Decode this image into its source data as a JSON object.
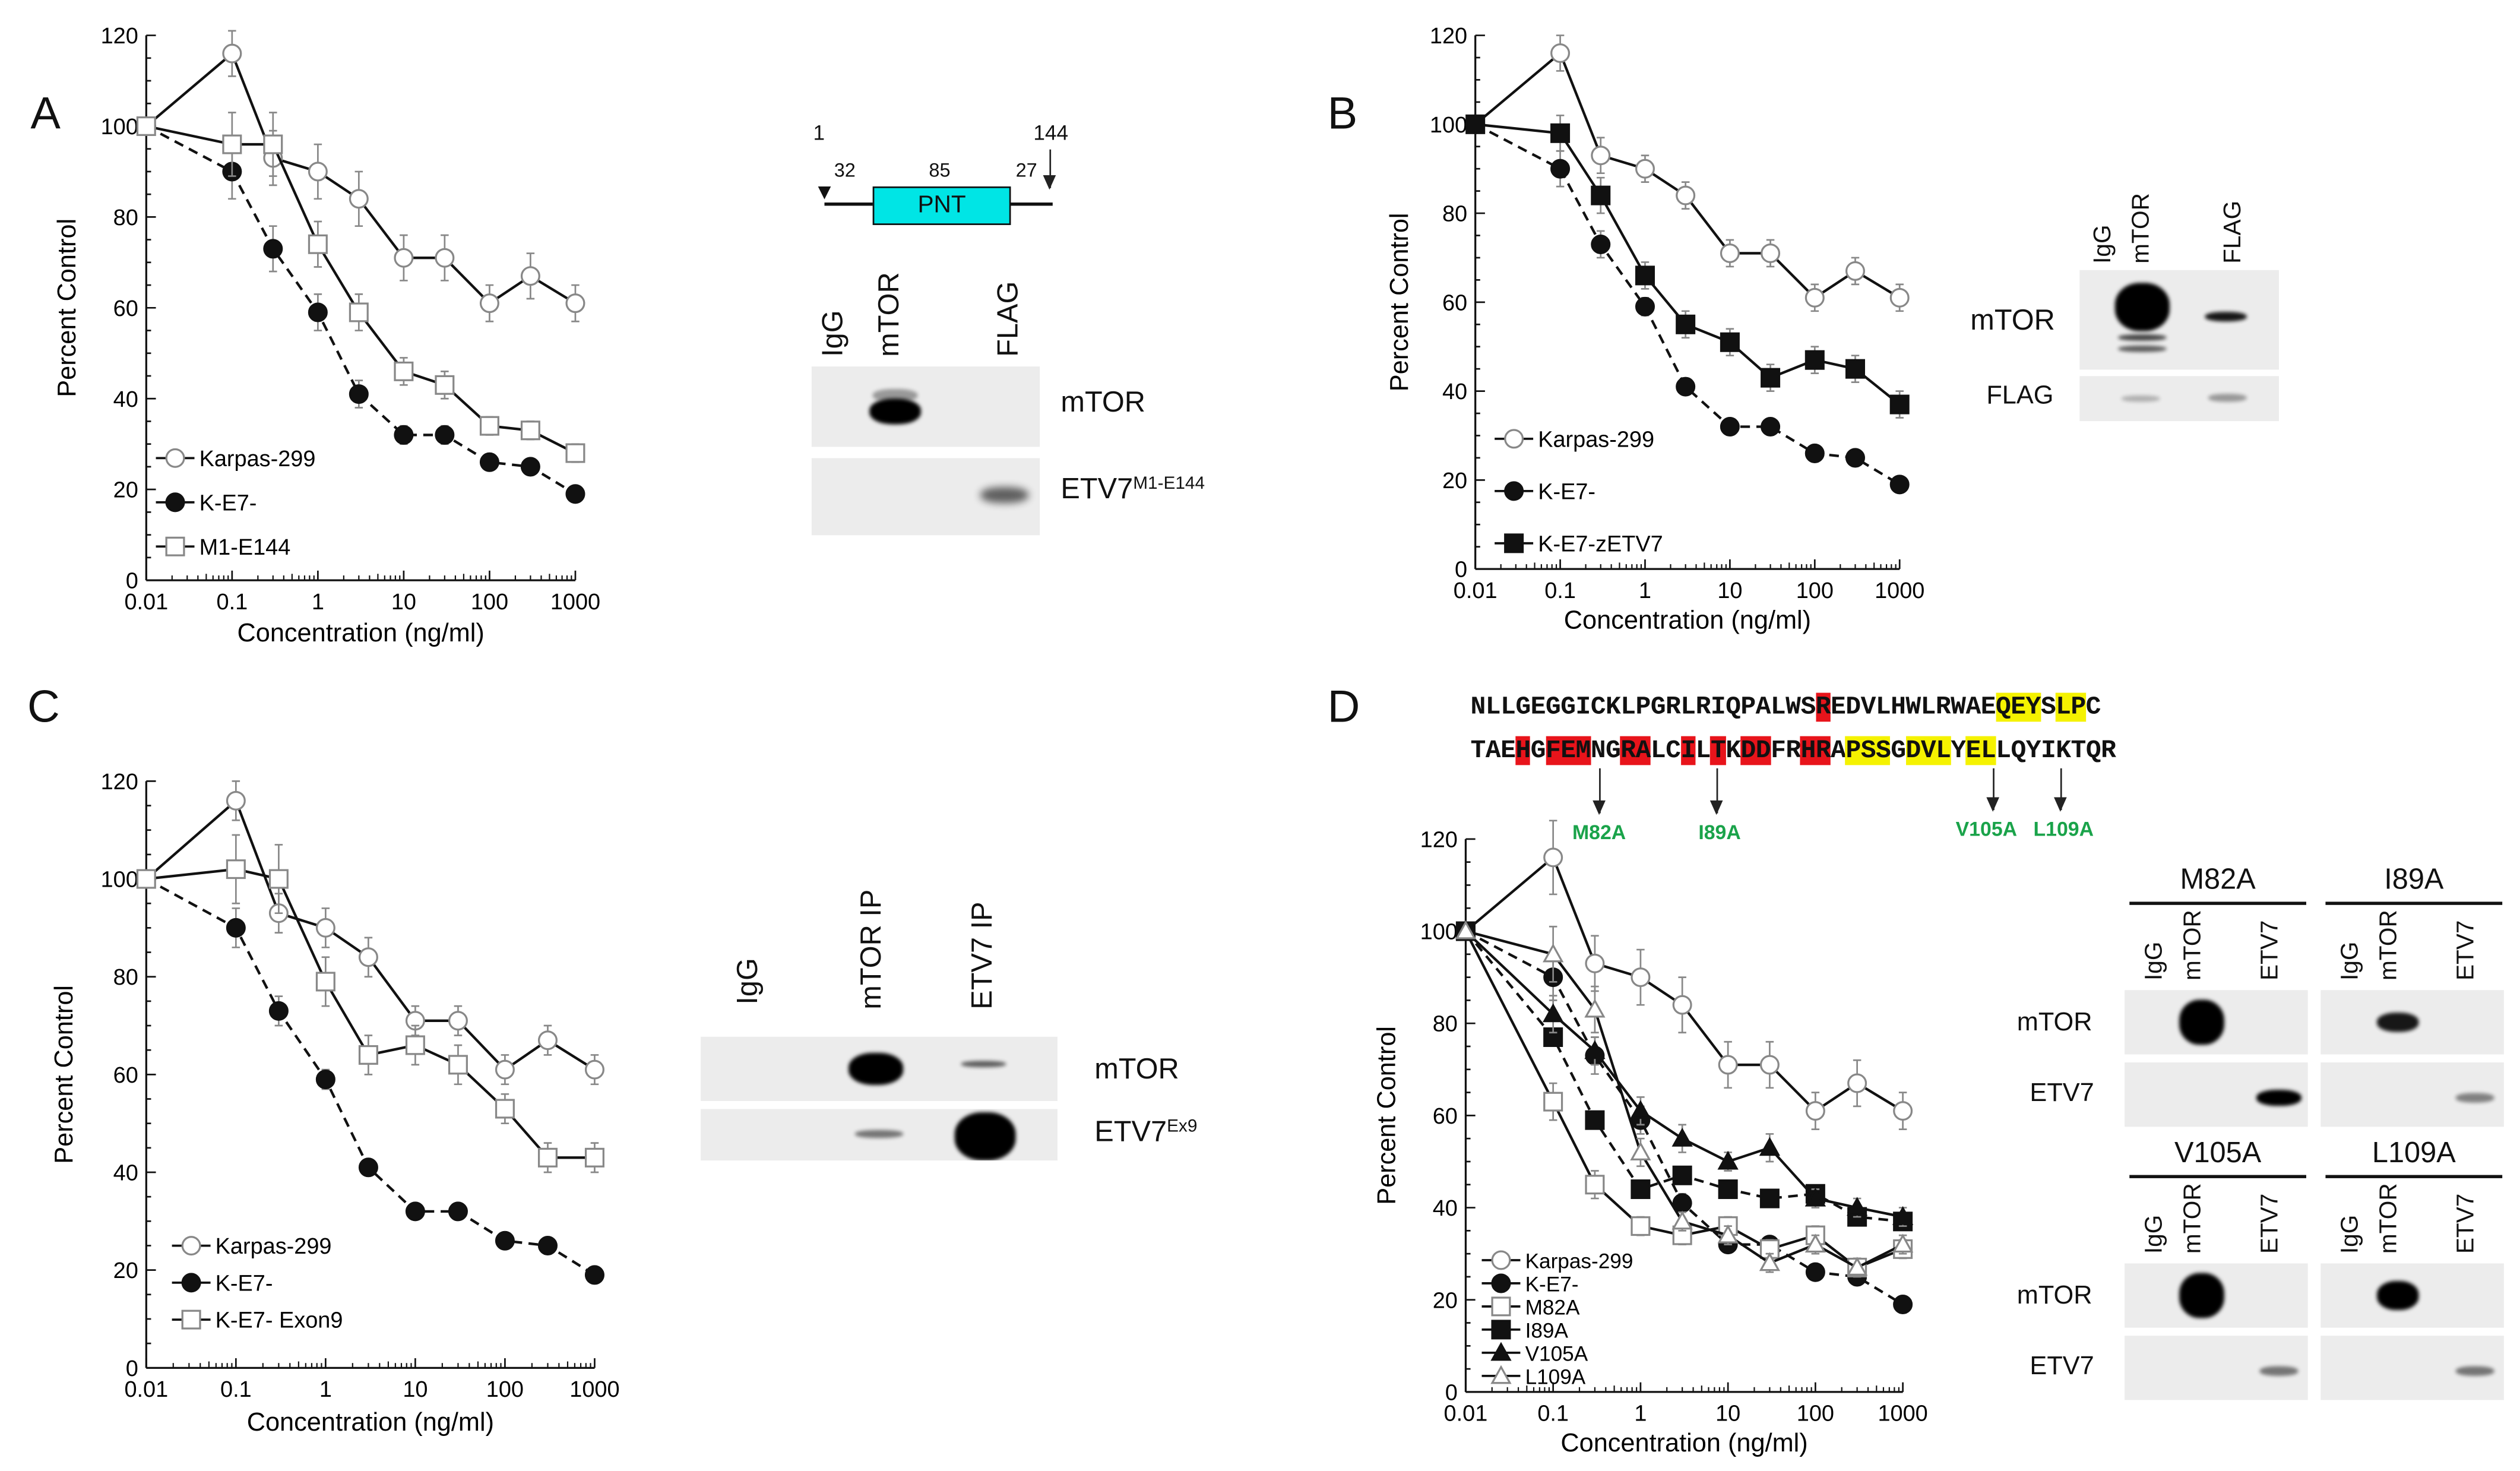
{
  "chart_data": [
    {
      "type": "line",
      "panel": "A",
      "xlabel": "Concentration (ng/ml)",
      "ylabel": "Percent  Control",
      "xscale": "log",
      "xlim": [
        0.01,
        1000
      ],
      "ylim": [
        0,
        120
      ],
      "xticks": [
        "0.01",
        "0.1",
        "1",
        "10",
        "100",
        "1000"
      ],
      "yticks": [
        "0",
        "20",
        "40",
        "60",
        "80",
        "100",
        "120"
      ],
      "legend_position": "bottom-left",
      "x": [
        0.01,
        0.1,
        0.3,
        1,
        3,
        10,
        30,
        100,
        300,
        1000
      ],
      "series": [
        {
          "name": "Karpas-299",
          "marker": "circle-open",
          "dash": false,
          "values": [
            100,
            116,
            93,
            90,
            84,
            71,
            71,
            61,
            67,
            61
          ],
          "err": [
            0,
            5,
            6,
            6,
            6,
            5,
            5,
            4,
            5,
            4
          ]
        },
        {
          "name": "K-E7-",
          "marker": "circle-filled",
          "dash": true,
          "values": [
            100,
            90,
            73,
            59,
            41,
            32,
            32,
            26,
            25,
            19
          ],
          "err": [
            0,
            6,
            5,
            4,
            3,
            2,
            2,
            1,
            1,
            1
          ]
        },
        {
          "name": "M1-E144",
          "marker": "square-open",
          "dash": false,
          "values": [
            100,
            96,
            96,
            74,
            59,
            46,
            43,
            34,
            33,
            28
          ],
          "err": [
            0,
            7,
            7,
            5,
            4,
            3,
            3,
            2,
            2,
            2
          ]
        }
      ]
    },
    {
      "type": "line",
      "panel": "B",
      "xlabel": "Concentration (ng/ml)",
      "ylabel": "Percent  Control",
      "xscale": "log",
      "xlim": [
        0.01,
        1000
      ],
      "ylim": [
        0,
        120
      ],
      "xticks": [
        "0.01",
        "0.1",
        "1",
        "10",
        "100",
        "1000"
      ],
      "yticks": [
        "0",
        "20",
        "40",
        "60",
        "80",
        "100",
        "120"
      ],
      "legend_position": "bottom-left",
      "x": [
        0.01,
        0.1,
        0.3,
        1,
        3,
        10,
        30,
        100,
        300,
        1000
      ],
      "series": [
        {
          "name": "Karpas-299",
          "marker": "circle-open",
          "dash": false,
          "values": [
            100,
            116,
            93,
            90,
            84,
            71,
            71,
            61,
            67,
            61
          ],
          "err": [
            0,
            4,
            4,
            3,
            3,
            3,
            3,
            3,
            3,
            3
          ]
        },
        {
          "name": "K-E7-",
          "marker": "circle-filled",
          "dash": true,
          "values": [
            100,
            90,
            73,
            59,
            41,
            32,
            32,
            26,
            25,
            19
          ],
          "err": [
            0,
            4,
            3,
            2,
            1,
            1,
            1,
            1,
            1,
            1
          ]
        },
        {
          "name": "K-E7-zETV7",
          "marker": "square-filled",
          "dash": false,
          "values": [
            100,
            98,
            84,
            66,
            55,
            51,
            43,
            47,
            45,
            37
          ],
          "err": [
            0,
            4,
            4,
            3,
            3,
            3,
            3,
            3,
            3,
            3
          ]
        }
      ]
    },
    {
      "type": "line",
      "panel": "C",
      "xlabel": "Concentration (ng/ml)",
      "ylabel": "Percent  Control",
      "xscale": "log",
      "xlim": [
        0.01,
        1000
      ],
      "ylim": [
        0,
        120
      ],
      "xticks": [
        "0.01",
        "0.1",
        "1",
        "10",
        "100",
        "1000"
      ],
      "yticks": [
        "0",
        "20",
        "40",
        "60",
        "80",
        "100",
        "120"
      ],
      "legend_position": "bottom-left",
      "x": [
        0.01,
        0.1,
        0.3,
        1,
        3,
        10,
        30,
        100,
        300,
        1000
      ],
      "series": [
        {
          "name": "Karpas-299",
          "marker": "circle-open",
          "dash": false,
          "values": [
            100,
            116,
            93,
            90,
            84,
            71,
            71,
            61,
            67,
            61
          ],
          "err": [
            0,
            4,
            4,
            4,
            4,
            3,
            3,
            3,
            3,
            3
          ]
        },
        {
          "name": "K-E7-",
          "marker": "circle-filled",
          "dash": true,
          "values": [
            100,
            90,
            73,
            59,
            41,
            32,
            32,
            26,
            25,
            19
          ],
          "err": [
            0,
            4,
            3,
            2,
            1,
            1,
            1,
            1,
            1,
            1
          ]
        },
        {
          "name": "K-E7- Exon9",
          "marker": "square-open",
          "dash": false,
          "values": [
            100,
            102,
            100,
            79,
            64,
            66,
            62,
            53,
            43,
            43
          ],
          "err": [
            0,
            7,
            7,
            5,
            4,
            4,
            4,
            3,
            3,
            3
          ]
        }
      ]
    },
    {
      "type": "line",
      "panel": "D",
      "xlabel": "Concentration (ng/ml)",
      "ylabel": "Percent  Control",
      "xscale": "log",
      "xlim": [
        0.01,
        1000
      ],
      "ylim": [
        0,
        120
      ],
      "xticks": [
        "0.01",
        "0.1",
        "1",
        "10",
        "100",
        "1000"
      ],
      "yticks": [
        "0",
        "20",
        "40",
        "60",
        "80",
        "100",
        "120"
      ],
      "legend_position": "bottom-left",
      "x": [
        0.01,
        0.1,
        0.3,
        1,
        3,
        10,
        30,
        100,
        300,
        1000
      ],
      "series": [
        {
          "name": "Karpas-299",
          "marker": "circle-open",
          "dash": false,
          "values": [
            100,
            116,
            93,
            90,
            84,
            71,
            71,
            61,
            67,
            61
          ],
          "err": [
            0,
            8,
            6,
            6,
            6,
            5,
            5,
            4,
            5,
            4
          ]
        },
        {
          "name": "K-E7-",
          "marker": "circle-filled",
          "dash": true,
          "values": [
            100,
            90,
            73,
            59,
            41,
            32,
            32,
            26,
            25,
            19
          ],
          "err": [
            0,
            5,
            4,
            3,
            2,
            1,
            1,
            1,
            1,
            1
          ]
        },
        {
          "name": "M82A",
          "marker": "square-open",
          "dash": false,
          "values": [
            100,
            63,
            45,
            36,
            34,
            36,
            31,
            34,
            27,
            31
          ],
          "err": [
            0,
            4,
            3,
            2,
            2,
            2,
            2,
            2,
            2,
            2
          ]
        },
        {
          "name": "I89A",
          "marker": "square-filled",
          "dash": true,
          "values": [
            100,
            77,
            59,
            44,
            47,
            44,
            42,
            43,
            38,
            37
          ],
          "err": [
            0,
            0,
            0,
            0,
            0,
            0,
            0,
            0,
            0,
            0
          ]
        },
        {
          "name": "V105A",
          "marker": "triangle-filled",
          "dash": false,
          "values": [
            100,
            82,
            74,
            61,
            55,
            50,
            53,
            42,
            40,
            38
          ],
          "err": [
            0,
            4,
            3,
            3,
            3,
            2,
            3,
            2,
            2,
            2
          ]
        },
        {
          "name": "L109A",
          "marker": "triangle-open",
          "dash": false,
          "values": [
            100,
            95,
            83,
            52,
            37,
            34,
            28,
            32,
            27,
            32
          ],
          "err": [
            0,
            6,
            5,
            3,
            2,
            2,
            2,
            2,
            2,
            2
          ]
        }
      ]
    }
  ],
  "panel_a_blot": {
    "domain": {
      "start": "1",
      "end": "144",
      "n_term": "32",
      "pnt_len": "85",
      "c_term": "27",
      "box_label": "PNT",
      "box_color": "#00e5e5"
    },
    "lanes": [
      "IgG",
      "mTOR",
      "FLAG"
    ],
    "rows": [
      "mTOR",
      "ETV7",
      "M1-E144"
    ]
  },
  "panel_b_blot": {
    "lanes": [
      "IgG",
      "mTOR",
      "FLAG"
    ],
    "rows": [
      "mTOR",
      "FLAG"
    ]
  },
  "panel_c_blot": {
    "lanes": [
      "IgG",
      "mTOR IP",
      "ETV7 IP"
    ],
    "rows": [
      "mTOR",
      "ETV7",
      "Ex9"
    ]
  },
  "panel_d": {
    "sequence_rows": [
      [
        {
          "t": "NLLGEGGICKLPGRLRIQPALWS",
          "hl": ""
        },
        {
          "t": "R",
          "hl": "red"
        },
        {
          "t": "EDVLHWLRWAE",
          "hl": ""
        },
        {
          "t": "QEY",
          "hl": "yellow"
        },
        {
          "t": "S",
          "hl": ""
        },
        {
          "t": "LP",
          "hl": "yellow"
        },
        {
          "t": "C",
          "hl": ""
        }
      ],
      [
        {
          "t": "TAE",
          "hl": ""
        },
        {
          "t": "H",
          "hl": "red"
        },
        {
          "t": "G",
          "hl": ""
        },
        {
          "t": "FEM",
          "hl": "red"
        },
        {
          "t": "NG",
          "hl": ""
        },
        {
          "t": "RA",
          "hl": "red"
        },
        {
          "t": "LC",
          "hl": ""
        },
        {
          "t": "I",
          "hl": "red"
        },
        {
          "t": "L",
          "hl": ""
        },
        {
          "t": "T",
          "hl": "red"
        },
        {
          "t": "K",
          "hl": ""
        },
        {
          "t": "DD",
          "hl": "red"
        },
        {
          "t": "FR",
          "hl": ""
        },
        {
          "t": "HR",
          "hl": "red"
        },
        {
          "t": "A",
          "hl": ""
        },
        {
          "t": "PSS",
          "hl": "yellow"
        },
        {
          "t": "G",
          "hl": ""
        },
        {
          "t": "DVL",
          "hl": "yellow"
        },
        {
          "t": "Y",
          "hl": ""
        },
        {
          "t": "EL",
          "hl": "yellow"
        },
        {
          "t": "LQYIKTQR",
          "hl": ""
        }
      ]
    ],
    "mutations": [
      "M82A",
      "I89A",
      "V105A",
      "L109A"
    ],
    "mutation_color": "#1aa34a",
    "highlight_colors": {
      "red": "#e8141b",
      "yellow": "#f5f200"
    },
    "blots": [
      {
        "title": "M82A",
        "lanes": [
          "IgG",
          "mTOR",
          "ETV7"
        ]
      },
      {
        "title": "I89A",
        "lanes": [
          "IgG",
          "mTOR",
          "ETV7"
        ]
      },
      {
        "title": "V105A",
        "lanes": [
          "IgG",
          "mTOR",
          "ETV7"
        ]
      },
      {
        "title": "L109A",
        "lanes": [
          "IgG",
          "mTOR",
          "ETV7"
        ]
      }
    ],
    "rows": [
      "mTOR",
      "ETV7"
    ]
  }
}
